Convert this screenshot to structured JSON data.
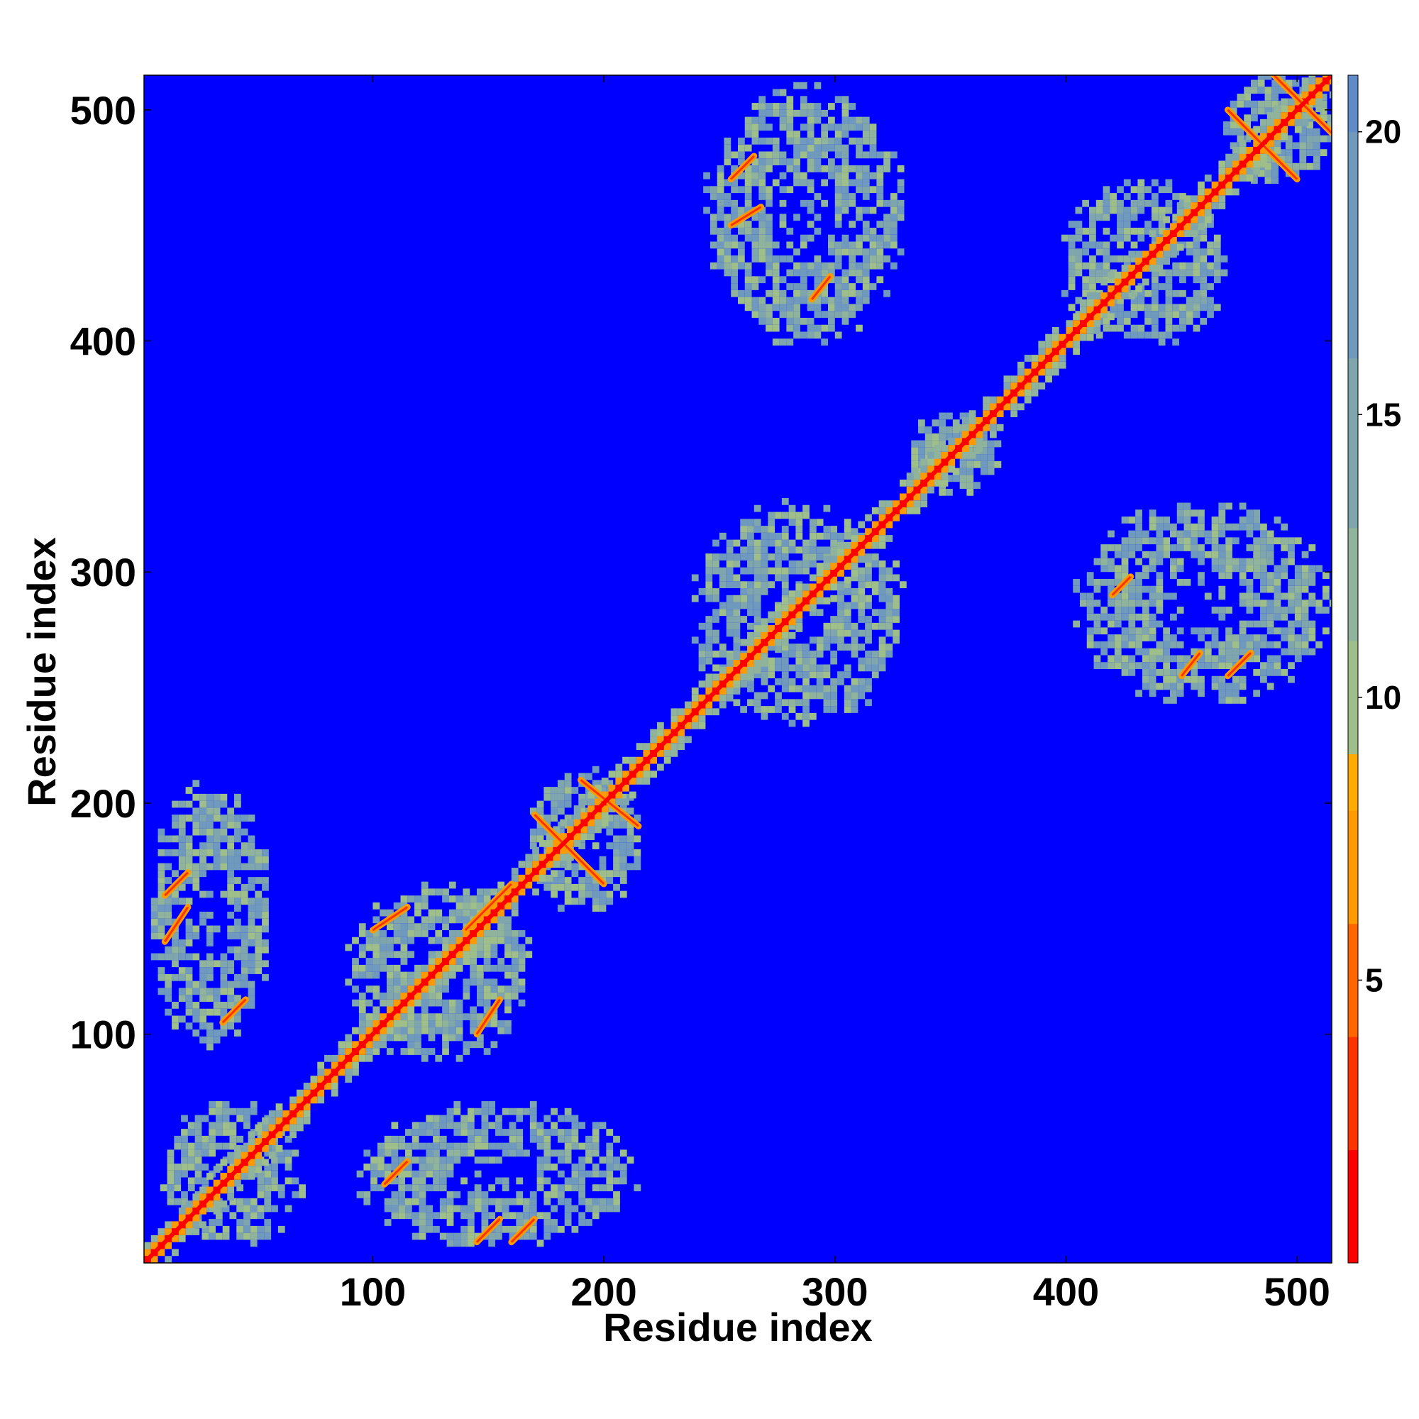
{
  "chart_data": {
    "type": "heatmap",
    "title": "",
    "xlabel": "Residue index",
    "ylabel": "Residue index",
    "xlim": [
      1,
      515
    ],
    "ylim": [
      1,
      515
    ],
    "x_ticks": [
      100,
      200,
      300,
      400,
      500
    ],
    "y_ticks": [
      100,
      200,
      300,
      400,
      500
    ],
    "grid": false,
    "legend": "none",
    "colorbar": {
      "position": "right",
      "range": [
        0,
        21
      ],
      "ticks": [
        5,
        10,
        15,
        20
      ],
      "colors": [
        "#ff0000",
        "#ff3300",
        "#ff6600",
        "#ff9900",
        "#ffaa00",
        "#9fbf8a",
        "#8fb39b",
        "#7fa6ad",
        "#6f99bd",
        "#5f8cc8",
        "#0000ff"
      ],
      "stops": [
        0,
        2,
        4,
        6,
        8,
        9,
        11,
        13,
        16,
        20,
        21
      ]
    },
    "background_value": 21,
    "diagonal_value": 1,
    "contact_regions": [
      {
        "x": [
          5,
          70
        ],
        "y": [
          5,
          70
        ]
      },
      {
        "x": [
          85,
          170
        ],
        "y": [
          85,
          165
        ]
      },
      {
        "x": [
          165,
          215
        ],
        "y": [
          150,
          215
        ]
      },
      {
        "x": [
          235,
          330
        ],
        "y": [
          230,
          330
        ]
      },
      {
        "x": [
          330,
          370
        ],
        "y": [
          330,
          370
        ]
      },
      {
        "x": [
          395,
          470
        ],
        "y": [
          395,
          470
        ]
      },
      {
        "x": [
          465,
          515
        ],
        "y": [
          465,
          515
        ]
      },
      {
        "x": [
          1,
          55
        ],
        "y": [
          90,
          210
        ]
      },
      {
        "x": [
          90,
          215
        ],
        "y": [
          5,
          70
        ]
      },
      {
        "x": [
          240,
          330
        ],
        "y": [
          395,
          510
        ]
      },
      {
        "x": [
          400,
          515
        ],
        "y": [
          240,
          330
        ]
      }
    ],
    "beta_strands": [
      {
        "x": [
          140,
          160
        ],
        "y": [
          145,
          165
        ],
        "dir": "anti"
      },
      {
        "x": [
          170,
          200
        ],
        "y": [
          195,
          165
        ],
        "dir": "anti"
      },
      {
        "x": [
          190,
          215
        ],
        "y": [
          210,
          190
        ],
        "dir": "anti"
      },
      {
        "x": [
          470,
          500
        ],
        "y": [
          500,
          470
        ],
        "dir": "anti"
      },
      {
        "x": [
          490,
          515
        ],
        "y": [
          515,
          490
        ],
        "dir": "anti"
      },
      {
        "x": [
          255,
          265
        ],
        "y": [
          470,
          480
        ],
        "dir": "parallel"
      },
      {
        "x": [
          255,
          268
        ],
        "y": [
          450,
          458
        ],
        "dir": "parallel"
      },
      {
        "x": [
          290,
          298
        ],
        "y": [
          418,
          428
        ],
        "dir": "parallel"
      },
      {
        "x": [
          420,
          428
        ],
        "y": [
          290,
          298
        ],
        "dir": "parallel"
      },
      {
        "x": [
          450,
          458
        ],
        "y": [
          255,
          265
        ],
        "dir": "parallel"
      },
      {
        "x": [
          470,
          480
        ],
        "y": [
          255,
          265
        ],
        "dir": "parallel"
      },
      {
        "x": [
          10,
          20
        ],
        "y": [
          160,
          170
        ],
        "dir": "parallel"
      },
      {
        "x": [
          10,
          20
        ],
        "y": [
          140,
          155
        ],
        "dir": "parallel"
      },
      {
        "x": [
          35,
          45
        ],
        "y": [
          105,
          115
        ],
        "dir": "parallel"
      },
      {
        "x": [
          105,
          115
        ],
        "y": [
          35,
          45
        ],
        "dir": "parallel"
      },
      {
        "x": [
          145,
          155
        ],
        "y": [
          10,
          20
        ],
        "dir": "parallel"
      },
      {
        "x": [
          160,
          170
        ],
        "y": [
          10,
          20
        ],
        "dir": "parallel"
      },
      {
        "x": [
          100,
          115
        ],
        "y": [
          145,
          155
        ],
        "dir": "parallel"
      },
      {
        "x": [
          145,
          155
        ],
        "y": [
          100,
          115
        ],
        "dir": "parallel"
      }
    ]
  }
}
